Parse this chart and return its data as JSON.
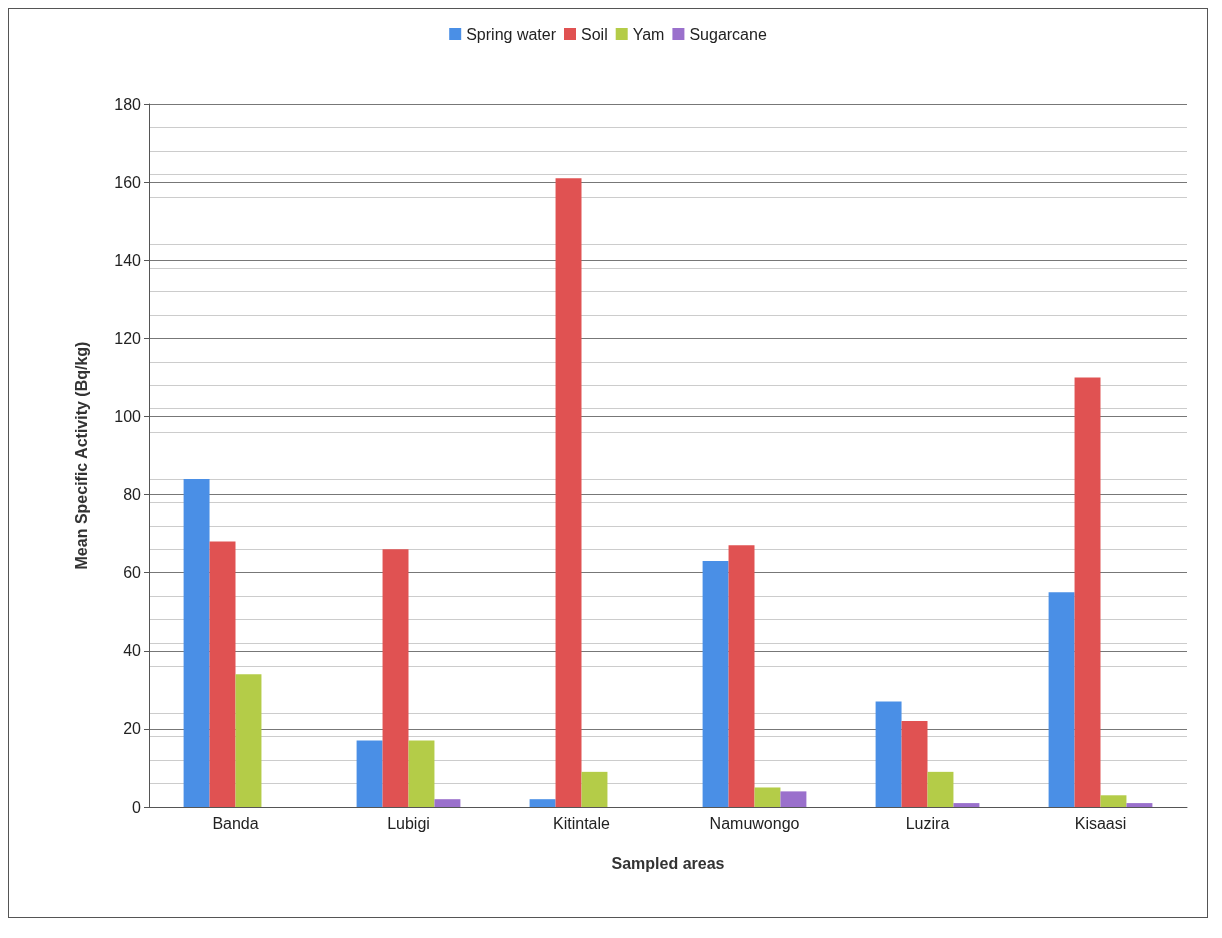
{
  "chart_data": {
    "type": "bar",
    "xlabel": "Sampled areas",
    "ylabel": "Mean Specific Activity (Bq/kg)",
    "categories": [
      "Banda",
      "Lubigi",
      "Kitintale",
      "Namuwongo",
      "Luzira",
      "Kisaasi"
    ],
    "series": [
      {
        "name": "Spring water",
        "color": "#4a8fe6",
        "values": [
          84,
          17,
          2,
          63,
          27,
          55
        ]
      },
      {
        "name": "Soil",
        "color": "#e05252",
        "values": [
          68,
          66,
          161,
          67,
          22,
          110
        ]
      },
      {
        "name": "Yam",
        "color": "#b4cc48",
        "values": [
          34,
          17,
          9,
          5,
          9,
          3
        ]
      },
      {
        "name": "Sugarcane",
        "color": "#9a70cc",
        "values": [
          0,
          2,
          0,
          4,
          1,
          1
        ]
      }
    ],
    "ylim": [
      0,
      180
    ],
    "yticks": [
      0,
      20,
      40,
      60,
      80,
      100,
      120,
      140,
      160,
      180
    ],
    "grid": "y",
    "legend": "top"
  }
}
